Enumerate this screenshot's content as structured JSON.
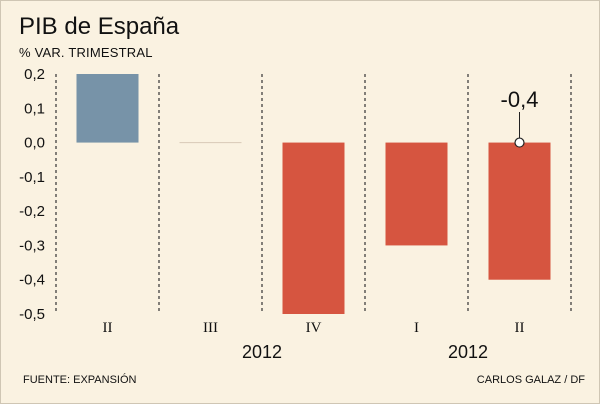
{
  "title": "PIB de España",
  "subtitle": "% VAR. TRIMESTRAL",
  "source": "FUENTE: EXPANSIÓN",
  "credit": "CARLOS GALAZ / DF",
  "colors": {
    "positive": "#7793a8",
    "negative": "#d65540",
    "background": "#faf2e1"
  },
  "chart_data": {
    "type": "bar",
    "title": "PIB de España",
    "ylabel": "% VAR. TRIMESTRAL",
    "xlabel": "",
    "categories": [
      "II",
      "III",
      "IV",
      "I",
      "II"
    ],
    "year_labels": [
      {
        "label": "2012",
        "first": 1,
        "last": 2
      },
      {
        "label": "2012",
        "first": 3,
        "last": 4
      }
    ],
    "values": [
      0.2,
      0.0,
      -0.5,
      -0.3,
      -0.4
    ],
    "ylim": [
      -0.5,
      0.2
    ],
    "yticks": [
      0.2,
      0.1,
      0.0,
      -0.1,
      -0.2,
      -0.3,
      -0.4,
      -0.5
    ],
    "ytick_labels": [
      "0,2",
      "0,1",
      "0,0",
      "-0,1",
      "-0,2",
      "-0,3",
      "-0,4",
      "-0,5"
    ],
    "annotations": [
      {
        "index": 4,
        "text": "-0,4"
      }
    ],
    "grid": false,
    "separators": "dashed-vertical"
  }
}
